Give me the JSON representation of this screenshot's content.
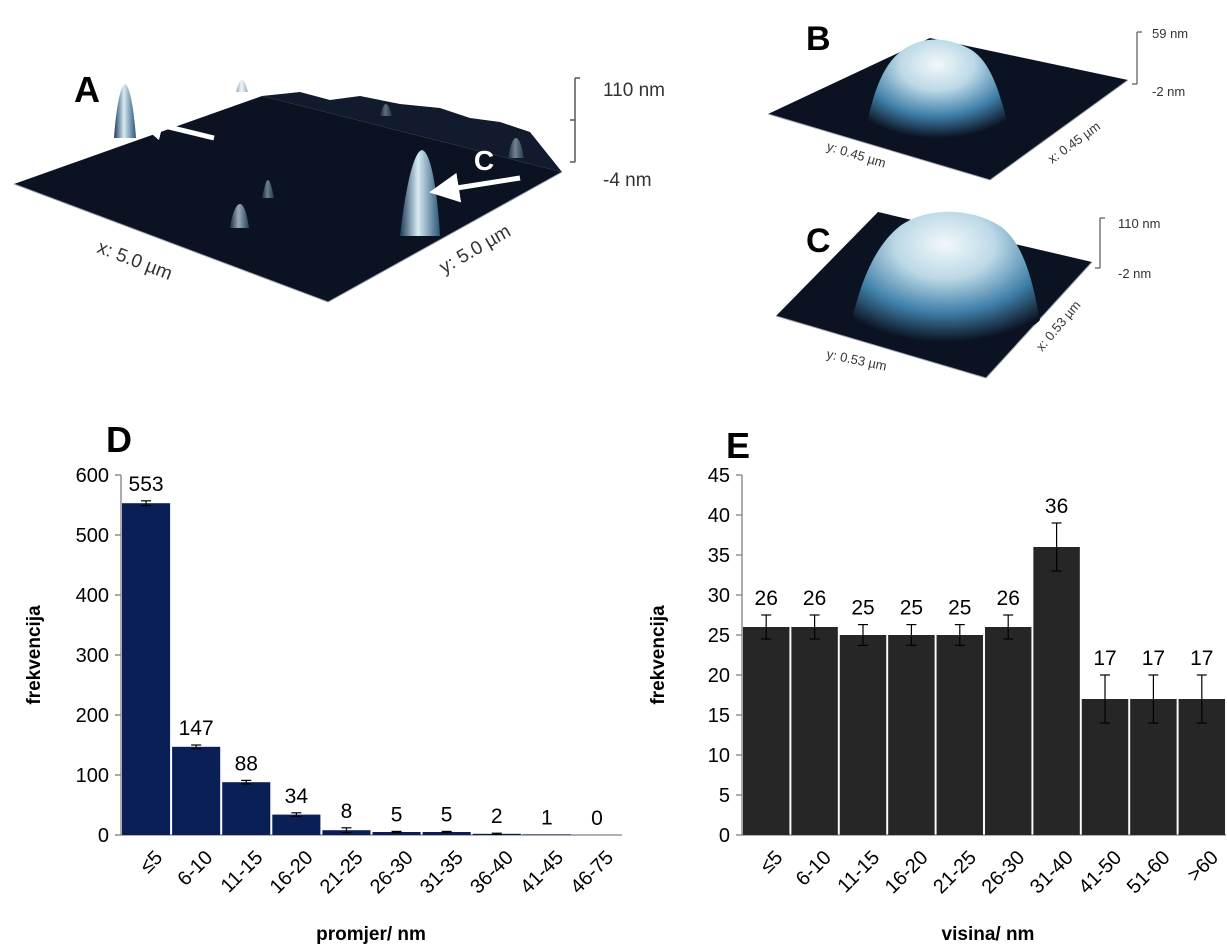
{
  "panels": {
    "A": {
      "letter": "A",
      "arrow_labels": [
        "B",
        "C"
      ],
      "scale_top": "110 nm",
      "scale_bottom": "-4 nm",
      "x_label": "x: 5.0 µm",
      "y_label": "y: 5.0 µm"
    },
    "B": {
      "letter": "B",
      "scale_top": "59 nm",
      "scale_bottom": "-2 nm",
      "x_label": "x: 0.45 µm",
      "y_label": "y: 0.45 µm"
    },
    "C": {
      "letter": "C",
      "scale_top": "110 nm",
      "scale_bottom": "-2 nm",
      "x_label": "x: 0.53 µm",
      "y_label": "y: 0.53 µm"
    }
  },
  "colors": {
    "surface_dark": "#0b1322",
    "peak_mid": "#3f7fa8",
    "peak_light": "#e6f2f7",
    "bar_D": "#0a1f55",
    "bar_E": "#262626"
  },
  "chart_data": [
    {
      "type": "bar",
      "panel_letter": "D",
      "categories": [
        "≤5",
        "6-10",
        "11-15",
        "16-20",
        "21-25",
        "26-30",
        "31-35",
        "36-40",
        "41-45",
        "46-75"
      ],
      "values": [
        553,
        147,
        88,
        34,
        8,
        5,
        5,
        2,
        1,
        0
      ],
      "errors": [
        4,
        3,
        3,
        3,
        4,
        1,
        1,
        1,
        0,
        0
      ],
      "data_labels": [
        "553",
        "147",
        "88",
        "34",
        "8",
        "5",
        "5",
        "2",
        "1",
        "0"
      ],
      "xlabel": "promjer/ nm",
      "ylabel": "frekvencija",
      "ylim": [
        0,
        600
      ],
      "yticks": [
        0,
        100,
        200,
        300,
        400,
        500,
        600
      ],
      "grid": false,
      "legend": "none"
    },
    {
      "type": "bar",
      "panel_letter": "E",
      "categories": [
        "≤5",
        "6-10",
        "11-15",
        "16-20",
        "21-25",
        "26-30",
        "31-40",
        "41-50",
        "51-60",
        ">60"
      ],
      "values": [
        26,
        26,
        25,
        25,
        25,
        26,
        36,
        17,
        17,
        17
      ],
      "errors": [
        1.5,
        1.5,
        1.3,
        1.3,
        1.3,
        1.5,
        3,
        3,
        3,
        3
      ],
      "data_labels": [
        "26",
        "26",
        "25",
        "25",
        "25",
        "26",
        "36",
        "17",
        "17",
        "17"
      ],
      "xlabel": "visina/ nm",
      "ylabel": "frekvencija",
      "ylim": [
        0,
        45
      ],
      "yticks": [
        0,
        5,
        10,
        15,
        20,
        25,
        30,
        35,
        40,
        45
      ],
      "grid": false,
      "legend": "none"
    }
  ]
}
